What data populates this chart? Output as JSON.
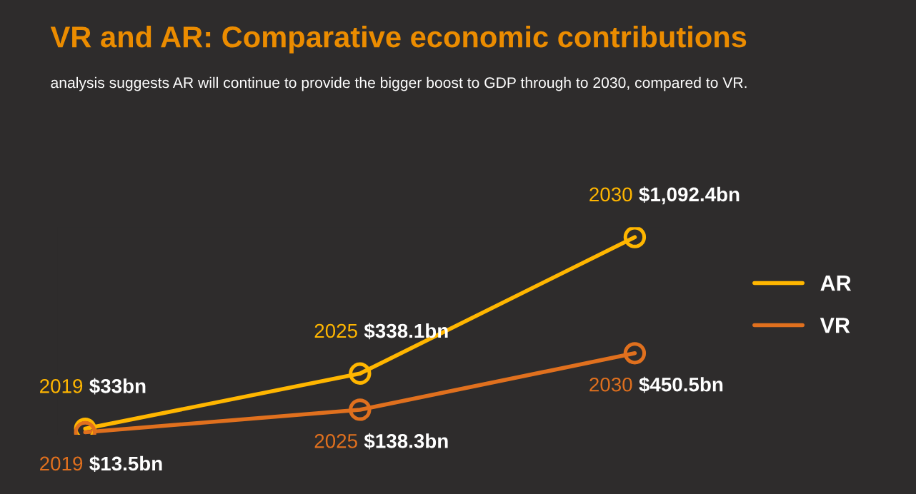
{
  "chart_data": {
    "type": "line",
    "title": "VR and AR: Comparative economic contributions",
    "subtitle": "analysis suggests AR will continue to provide the bigger boost to GDP through to 2030, compared to VR.",
    "categories": [
      "2019",
      "2025",
      "2030"
    ],
    "series": [
      {
        "name": "AR",
        "color": "#ffb600",
        "values": [
          33,
          338.1,
          1092.4
        ],
        "value_labels": [
          "$33bn",
          "$338.1bn",
          "$1,092.4bn"
        ]
      },
      {
        "name": "VR",
        "color": "#e0701e",
        "values": [
          13.5,
          138.3,
          450.5
        ],
        "value_labels": [
          "$13.5bn",
          "$138.3bn",
          "$450.5bn"
        ]
      }
    ],
    "marker": "circle",
    "line_style": "solid",
    "legend": "right"
  }
}
